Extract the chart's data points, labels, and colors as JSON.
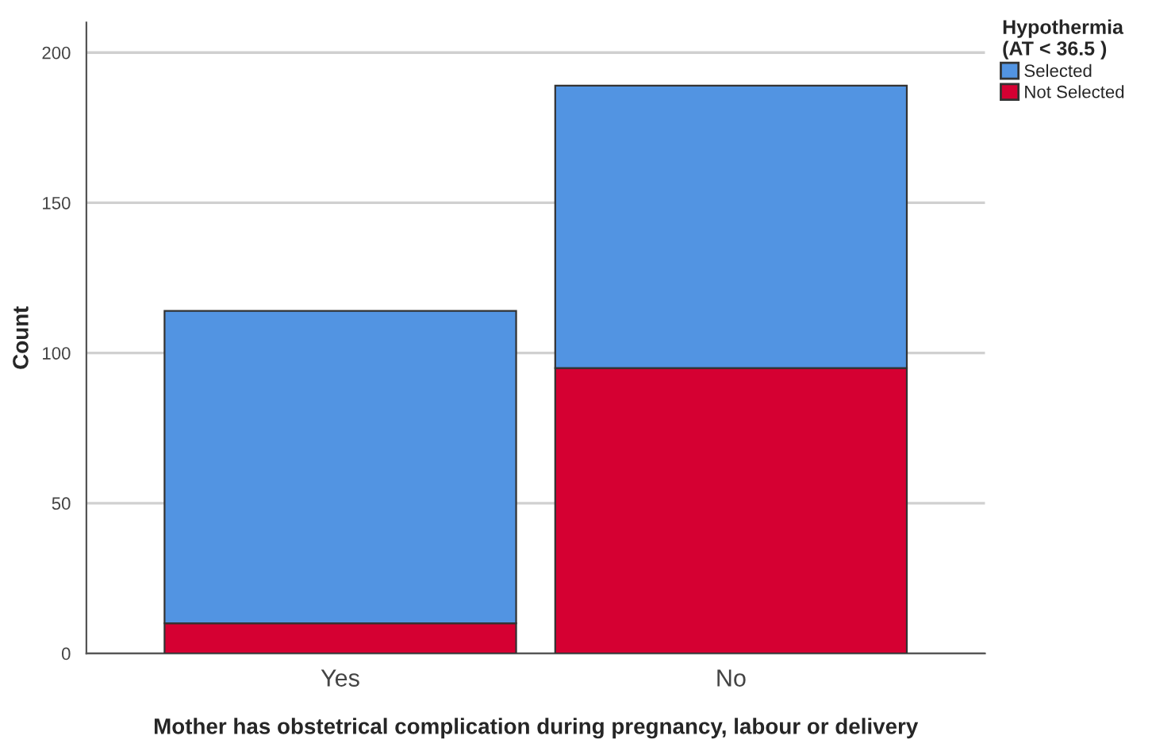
{
  "chart_data": {
    "type": "bar",
    "stacked": true,
    "xlabel": "Mother has obstetrical complication during pregnancy, labour or delivery",
    "ylabel": "Count",
    "legend_title": "Hypothermia\n(AT < 36.5 )",
    "categories": [
      "Yes",
      "No"
    ],
    "series": [
      {
        "name": "Not Selected",
        "color": "#d50032",
        "values": [
          10,
          95
        ]
      },
      {
        "name": "Selected",
        "color": "#5294e2",
        "values": [
          104,
          94
        ]
      }
    ],
    "ylim": [
      0,
      210
    ],
    "yticks": [
      0,
      50,
      100,
      150,
      200
    ],
    "grid": "y",
    "legend": "top right"
  }
}
